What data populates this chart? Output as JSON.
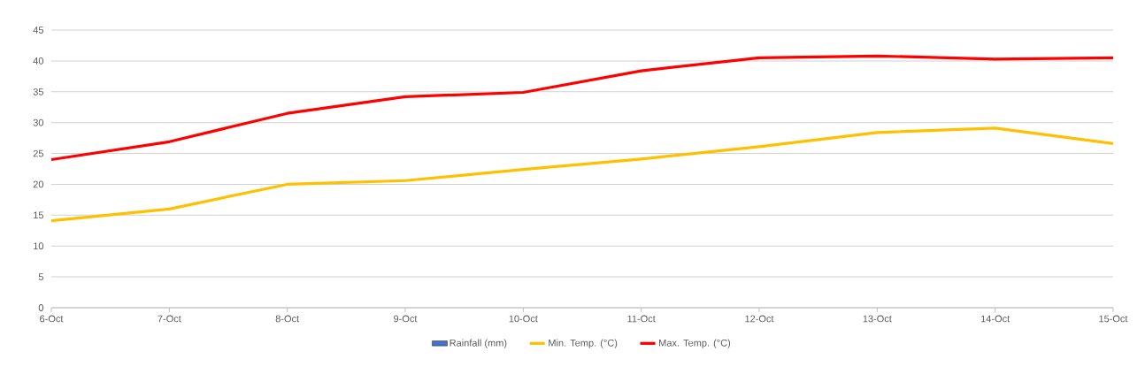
{
  "chart_data": {
    "type": "line",
    "categories": [
      "6-Oct",
      "7-Oct",
      "8-Oct",
      "9-Oct",
      "10-Oct",
      "11-Oct",
      "12-Oct",
      "13-Oct",
      "14-Oct",
      "15-Oct"
    ],
    "series": [
      {
        "name": "Rainfall (mm)",
        "type": "bar",
        "color": "#4472c4",
        "values": [
          0,
          0,
          0,
          0,
          0,
          0,
          0,
          0,
          0,
          0
        ]
      },
      {
        "name": "Min. Temp. (°C)",
        "color": "#ffc000",
        "values": [
          14.1,
          16,
          20,
          20.6,
          22.4,
          24.1,
          26.1,
          28.4,
          29.1,
          26.6
        ]
      },
      {
        "name": "Max. Temp. (°C)",
        "color": "#ff0000",
        "values": [
          24,
          26.9,
          31.5,
          34.2,
          34.9,
          38.4,
          40.5,
          40.8,
          40.3,
          40.5
        ]
      }
    ],
    "ylim": [
      0,
      45
    ],
    "yticks": [
      0,
      5,
      10,
      15,
      20,
      25,
      30,
      35,
      40,
      45
    ],
    "grid": "y",
    "legend": "bottom",
    "marker": "none",
    "line_style": "solid"
  }
}
